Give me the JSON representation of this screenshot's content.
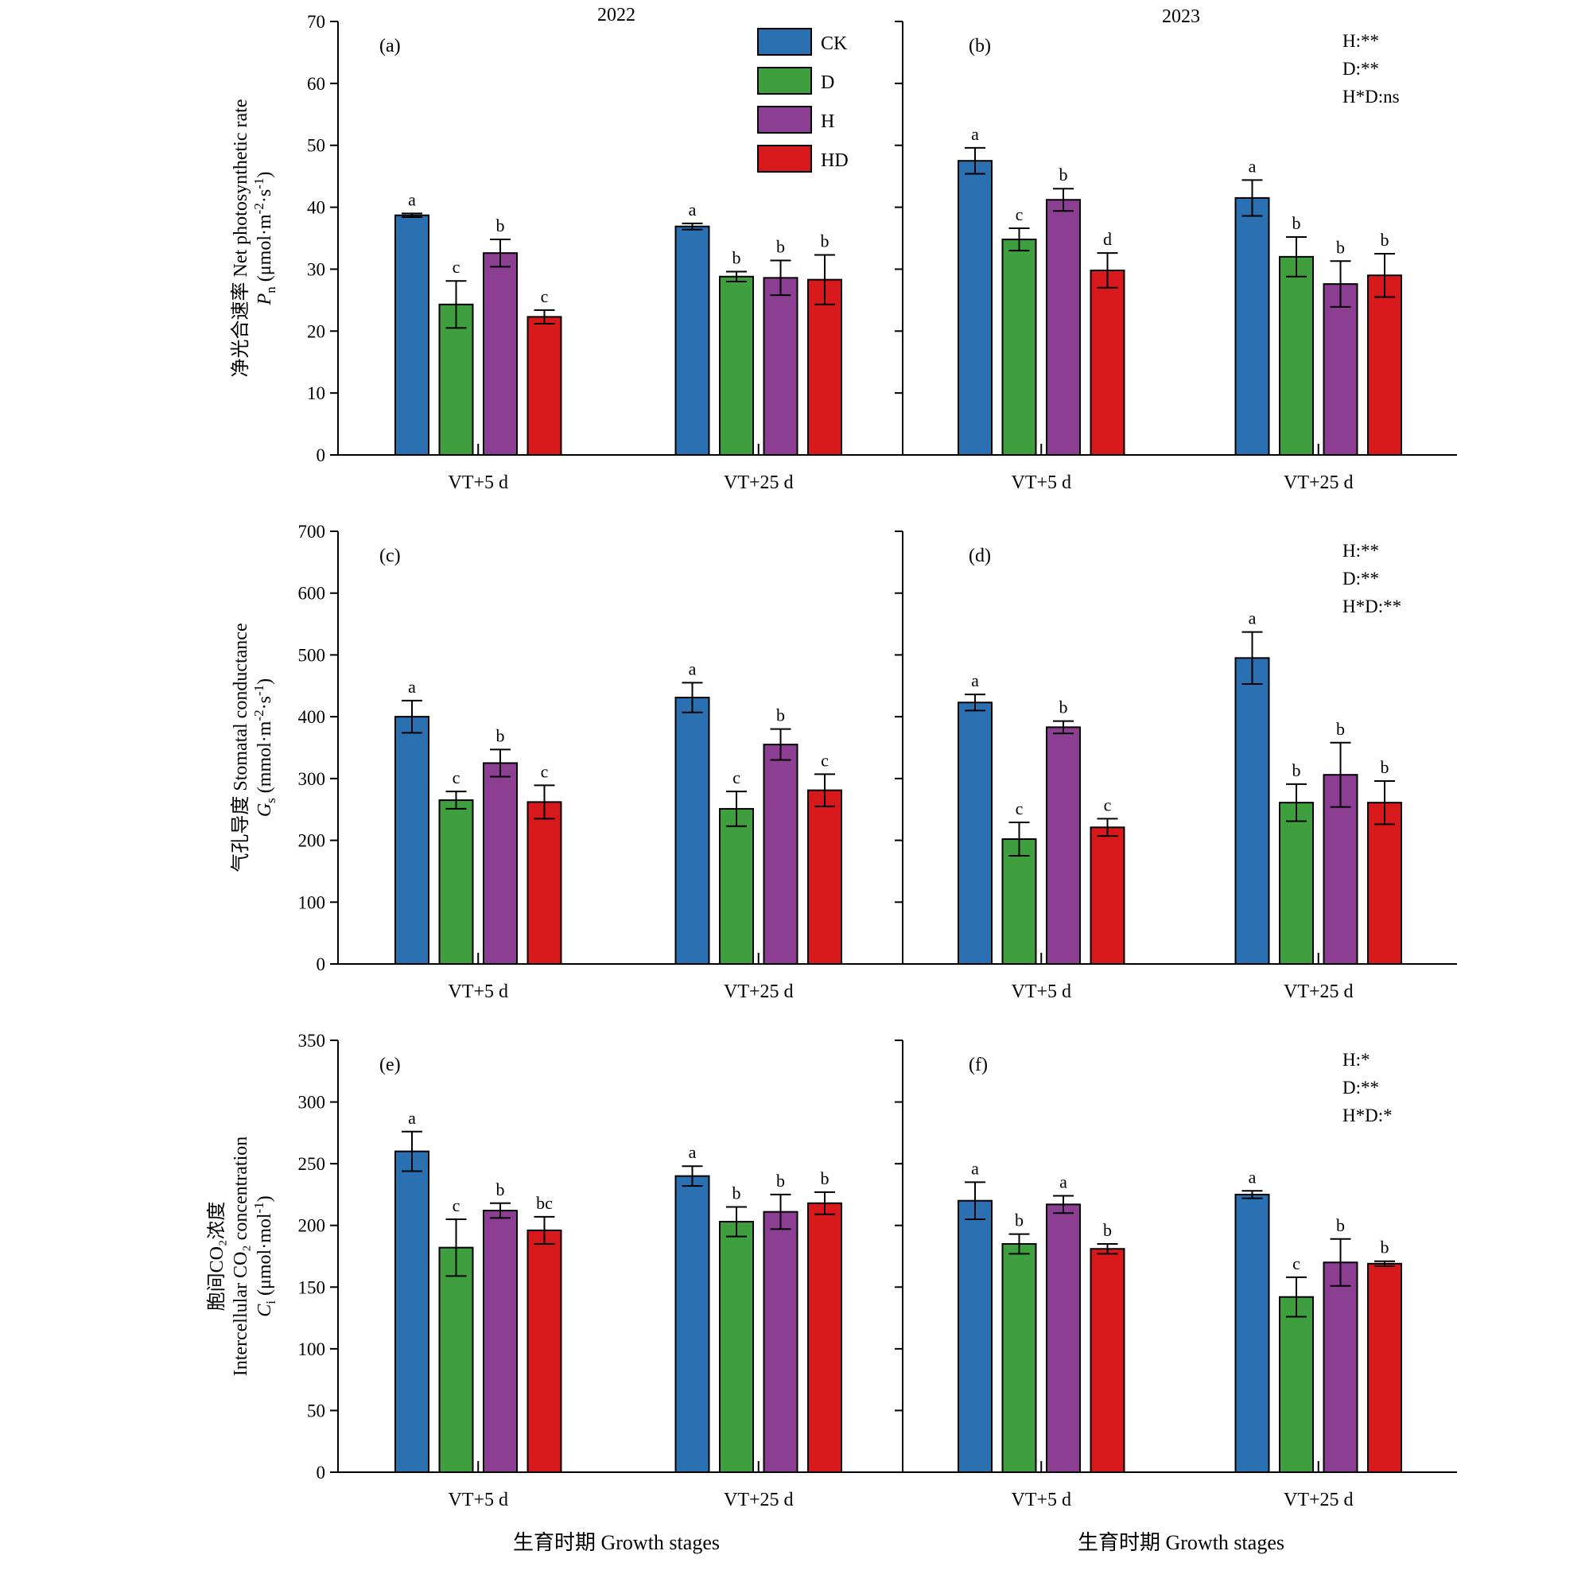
{
  "chart_data": {
    "type": "bar",
    "years": [
      "2022",
      "2023"
    ],
    "legend": [
      "CK",
      "D",
      "H",
      "HD"
    ],
    "colors": {
      "CK": "#2b70b0",
      "D": "#3f9e3e",
      "H": "#8c3e92",
      "HD": "#d7191c"
    },
    "categories": [
      "VT+5 d",
      "VT+25 d"
    ],
    "xtitle": "生育时期 Growth stages",
    "rows": [
      {
        "ylim": [
          0,
          70
        ],
        "yticks": [
          "0",
          "10",
          "20",
          "30",
          "40",
          "50",
          "60",
          "70"
        ],
        "ylabel": {
          "line1": "净光合速率 Net photosynthetic rate",
          "line2_var": "P",
          "line2_sub": "n",
          "line2_unit": "(μmol·m",
          "line2_sup1": "-2",
          "line2_mid": "·s",
          "line2_sup2": "-1",
          "line2_end": ")"
        },
        "panels": [
          {
            "label": "(a)",
            "stats": [],
            "groups": [
              {
                "values": [
                  38.7,
                  24.3,
                  32.6,
                  22.3
                ],
                "errors": [
                  0.3,
                  3.8,
                  2.2,
                  1.1
                ],
                "letters": [
                  "a",
                  "c",
                  "b",
                  "c"
                ]
              },
              {
                "values": [
                  36.9,
                  28.8,
                  28.6,
                  28.3
                ],
                "errors": [
                  0.5,
                  0.8,
                  2.8,
                  4.0
                ],
                "letters": [
                  "a",
                  "b",
                  "b",
                  "b"
                ]
              }
            ]
          },
          {
            "label": "(b)",
            "stats": [
              "H:**",
              "D:**",
              "H*D:ns"
            ],
            "groups": [
              {
                "values": [
                  47.5,
                  34.8,
                  41.2,
                  29.8
                ],
                "errors": [
                  2.1,
                  1.8,
                  1.8,
                  2.8
                ],
                "letters": [
                  "a",
                  "c",
                  "b",
                  "d"
                ]
              },
              {
                "values": [
                  41.5,
                  32.0,
                  27.6,
                  29.0
                ],
                "errors": [
                  2.9,
                  3.2,
                  3.7,
                  3.5
                ],
                "letters": [
                  "a",
                  "b",
                  "b",
                  "b"
                ]
              }
            ]
          }
        ]
      },
      {
        "ylim": [
          0,
          700
        ],
        "yticks": [
          "0",
          "100",
          "200",
          "300",
          "400",
          "500",
          "600",
          "700"
        ],
        "ylabel": {
          "line1": "气孔导度 Stomatal conductance",
          "line2_var": "G",
          "line2_sub": "s",
          "line2_unit": "(mmol·m",
          "line2_sup1": "-2",
          "line2_mid": "·s",
          "line2_sup2": "-1",
          "line2_end": ")"
        },
        "panels": [
          {
            "label": "(c)",
            "stats": [],
            "groups": [
              {
                "values": [
                  400,
                  265,
                  325,
                  262
                ],
                "errors": [
                  26,
                  14,
                  22,
                  27
                ],
                "letters": [
                  "a",
                  "c",
                  "b",
                  "c"
                ]
              },
              {
                "values": [
                  431,
                  251,
                  355,
                  281
                ],
                "errors": [
                  24,
                  28,
                  25,
                  26
                ],
                "letters": [
                  "a",
                  "c",
                  "b",
                  "c"
                ]
              }
            ]
          },
          {
            "label": "(d)",
            "stats": [
              "H:**",
              "D:**",
              "H*D:**"
            ],
            "groups": [
              {
                "values": [
                  423,
                  202,
                  383,
                  221
                ],
                "errors": [
                  13,
                  27,
                  10,
                  14
                ],
                "letters": [
                  "a",
                  "c",
                  "b",
                  "c"
                ]
              },
              {
                "values": [
                  495,
                  261,
                  306,
                  261
                ],
                "errors": [
                  42,
                  30,
                  52,
                  35
                ],
                "letters": [
                  "a",
                  "b",
                  "b",
                  "b"
                ]
              }
            ]
          }
        ]
      },
      {
        "ylim": [
          0,
          350
        ],
        "yticks": [
          "0",
          "50",
          "100",
          "150",
          "200",
          "250",
          "300",
          "350"
        ],
        "ylabel": {
          "line0": "胞间CO₂浓度",
          "line1": "Intercellular CO₂ concentration",
          "line2_var": "C",
          "line2_sub": "i",
          "line2_unit": "(μmol·mol",
          "line2_sup1": "-1",
          "line2_mid": "",
          "line2_sup2": "",
          "line2_end": ")"
        },
        "panels": [
          {
            "label": "(e)",
            "stats": [],
            "groups": [
              {
                "values": [
                  260,
                  182,
                  212,
                  196
                ],
                "errors": [
                  16,
                  23,
                  6,
                  11
                ],
                "letters": [
                  "a",
                  "c",
                  "b",
                  "bc"
                ]
              },
              {
                "values": [
                  240,
                  203,
                  211,
                  218
                ],
                "errors": [
                  8,
                  12,
                  14,
                  9
                ],
                "letters": [
                  "a",
                  "b",
                  "b",
                  "b"
                ]
              }
            ]
          },
          {
            "label": "(f)",
            "stats": [
              "H:*",
              "D:**",
              "H*D:*"
            ],
            "groups": [
              {
                "values": [
                  220,
                  185,
                  217,
                  181
                ],
                "errors": [
                  15,
                  8,
                  7,
                  4
                ],
                "letters": [
                  "a",
                  "b",
                  "a",
                  "b"
                ]
              },
              {
                "values": [
                  225,
                  142,
                  170,
                  169
                ],
                "errors": [
                  3,
                  16,
                  19,
                  2
                ],
                "letters": [
                  "a",
                  "c",
                  "b",
                  "b"
                ]
              }
            ]
          }
        ]
      }
    ]
  }
}
